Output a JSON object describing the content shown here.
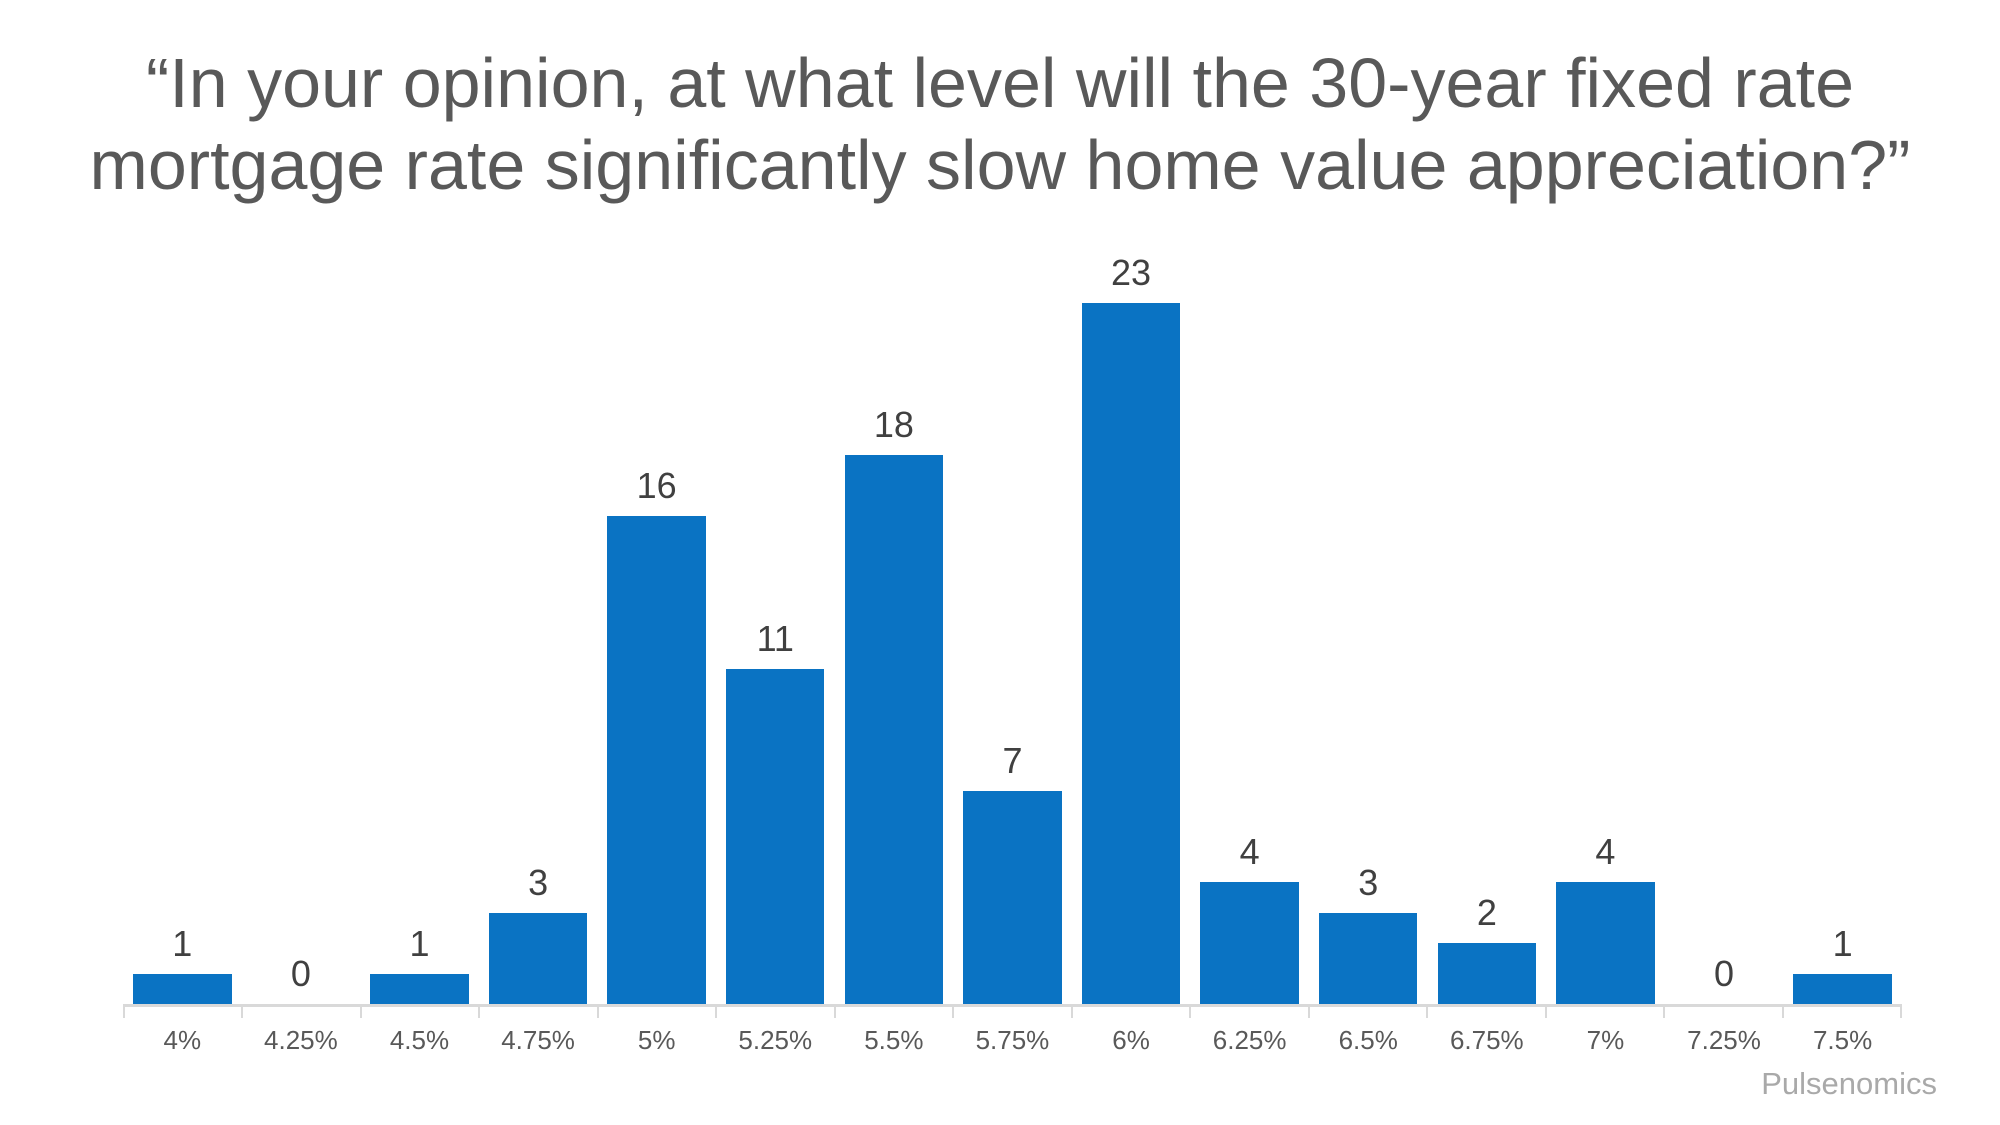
{
  "title": {
    "line1": "“In your opinion, at what level will the 30-year fixed rate",
    "line2": "mortgage rate significantly slow home value appreciation?”"
  },
  "attribution": "Pulsenomics",
  "colors": {
    "bar": "#0a73c3",
    "value_label": "#404040",
    "axis_label": "#595959",
    "title": "#595959",
    "axis_line": "#d9d9d9",
    "attribution": "#a9a9a9"
  },
  "chart_data": {
    "type": "bar",
    "title": "“In your opinion, at what level will the 30-year fixed rate mortgage rate significantly slow home value appreciation?”",
    "categories": [
      "4%",
      "4.25%",
      "4.5%",
      "4.75%",
      "5%",
      "5.25%",
      "5.5%",
      "5.75%",
      "6%",
      "6.25%",
      "6.5%",
      "6.75%",
      "7%",
      "7.25%",
      "7.5%"
    ],
    "values": [
      1,
      0,
      1,
      3,
      16,
      11,
      18,
      7,
      23,
      4,
      3,
      2,
      4,
      0,
      1
    ],
    "xlabel": "",
    "ylabel": "",
    "ylim": [
      0,
      23
    ],
    "grid": false,
    "legend": false,
    "value_labels": true,
    "bar_color": "#0a73c3"
  }
}
